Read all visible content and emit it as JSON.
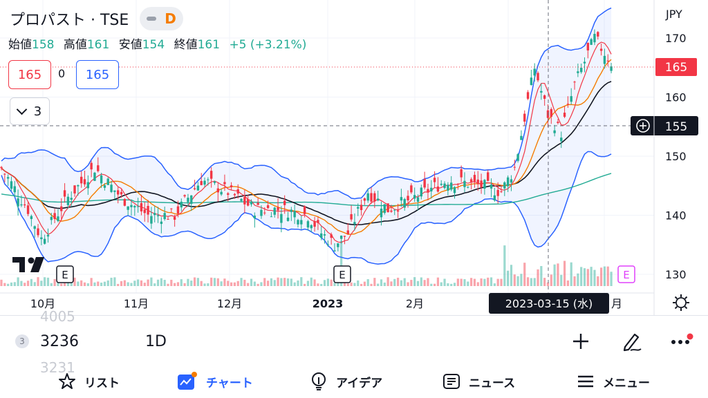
{
  "header": {
    "title": "プロパスト · TSE",
    "interval_badge": "D"
  },
  "ohlc": {
    "open_label": "始値",
    "open": "158",
    "high_label": "高値",
    "high": "161",
    "low_label": "安値",
    "low": "154",
    "close_label": "終値",
    "close": "161",
    "change": "+5 (+3.21%)"
  },
  "trade": {
    "sell_price": "165",
    "spread": "0",
    "buy_price": "165"
  },
  "indicators": {
    "count": "3"
  },
  "chart_data": {
    "type": "candlestick",
    "currency_label": "JPY",
    "y_ticks": [
      130,
      140,
      150,
      160,
      170
    ],
    "ylim": [
      128,
      175
    ],
    "x_labels": [
      "10月",
      "11月",
      "12月",
      "2023",
      "2月"
    ],
    "last_price_label": "165",
    "crosshair_price_label": "155",
    "crosshair_date_label": "2023-03-15 (水)",
    "earnings_markers": [
      "E",
      "E",
      "E"
    ],
    "colors": {
      "up": "#22ab94",
      "down": "#f23645",
      "bb": "#2962ff",
      "ma_short": "#f23645",
      "ma_mid": "#f57c00",
      "ma_long": "#131722",
      "ma_200": "#22ab94"
    }
  },
  "bottom": {
    "symbol_badge": "3",
    "symbol_value": "3236",
    "timeframe": "1D",
    "ghost_above": "4005",
    "ghost_below": "3231"
  },
  "nav": [
    {
      "label": "リスト",
      "icon": "star-icon"
    },
    {
      "label": "チャート",
      "icon": "chart-icon"
    },
    {
      "label": "アイデア",
      "icon": "lightbulb-icon"
    },
    {
      "label": "ニュース",
      "icon": "news-icon"
    },
    {
      "label": "メニュー",
      "icon": "menu-icon"
    }
  ]
}
